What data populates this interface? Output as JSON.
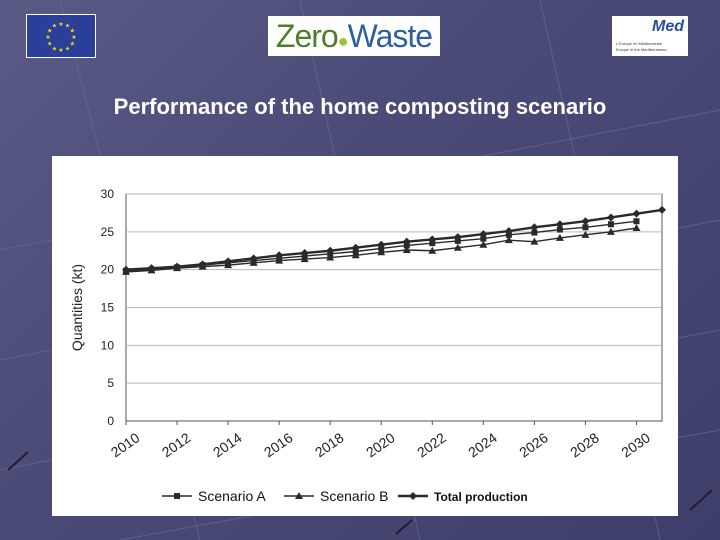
{
  "slide": {
    "title": "Performance of the home composting scenario",
    "logos": {
      "eu_flag": "European Union flag",
      "zerowaste": {
        "part1": "Zero",
        "part2": "Waste"
      },
      "med": {
        "word": "Med",
        "line1": "L'Europe en Méditerranée",
        "line2": "Europe in the Mediterranean"
      }
    }
  },
  "chart_data": {
    "type": "line",
    "title": "",
    "ylabel": "Quantities (kt)",
    "xlabel": "",
    "ylim": [
      0,
      30
    ],
    "yticks": [
      0,
      5,
      10,
      15,
      20,
      25,
      30
    ],
    "xticks": [
      "2010",
      "2012",
      "2014",
      "2016",
      "2018",
      "2020",
      "2022",
      "2024",
      "2026",
      "2028",
      "2030"
    ],
    "x": [
      2010,
      2011,
      2012,
      2013,
      2014,
      2015,
      2016,
      2017,
      2018,
      2019,
      2020,
      2021,
      2022,
      2023,
      2024,
      2025,
      2026,
      2027,
      2028,
      2029,
      2030,
      2031
    ],
    "grid": true,
    "legend_position": "bottom",
    "colors": {
      "series": "#2a2a2a",
      "grid": "#b8b8b8",
      "axis": "#555555"
    },
    "series": [
      {
        "name": "Scenario A",
        "marker": "square",
        "values": [
          19.8,
          20.0,
          20.3,
          20.6,
          20.9,
          21.2,
          21.5,
          21.8,
          22.1,
          22.4,
          22.8,
          23.2,
          23.5,
          23.8,
          24.1,
          24.6,
          24.9,
          25.3,
          25.6,
          26.0,
          26.4,
          null
        ]
      },
      {
        "name": "Scenario B",
        "marker": "triangle",
        "values": [
          19.7,
          19.9,
          20.2,
          20.4,
          20.6,
          20.9,
          21.2,
          21.4,
          21.6,
          21.9,
          22.3,
          22.6,
          22.5,
          22.9,
          23.3,
          23.9,
          23.7,
          24.2,
          24.6,
          25.0,
          25.5,
          null
        ]
      },
      {
        "name": "Total production",
        "marker": "diamond",
        "values": [
          20.0,
          20.2,
          20.4,
          20.7,
          21.1,
          21.5,
          21.9,
          22.2,
          22.5,
          22.9,
          23.3,
          23.7,
          24.0,
          24.3,
          24.7,
          25.1,
          25.6,
          26.0,
          26.4,
          26.9,
          27.4,
          27.9
        ]
      }
    ]
  }
}
